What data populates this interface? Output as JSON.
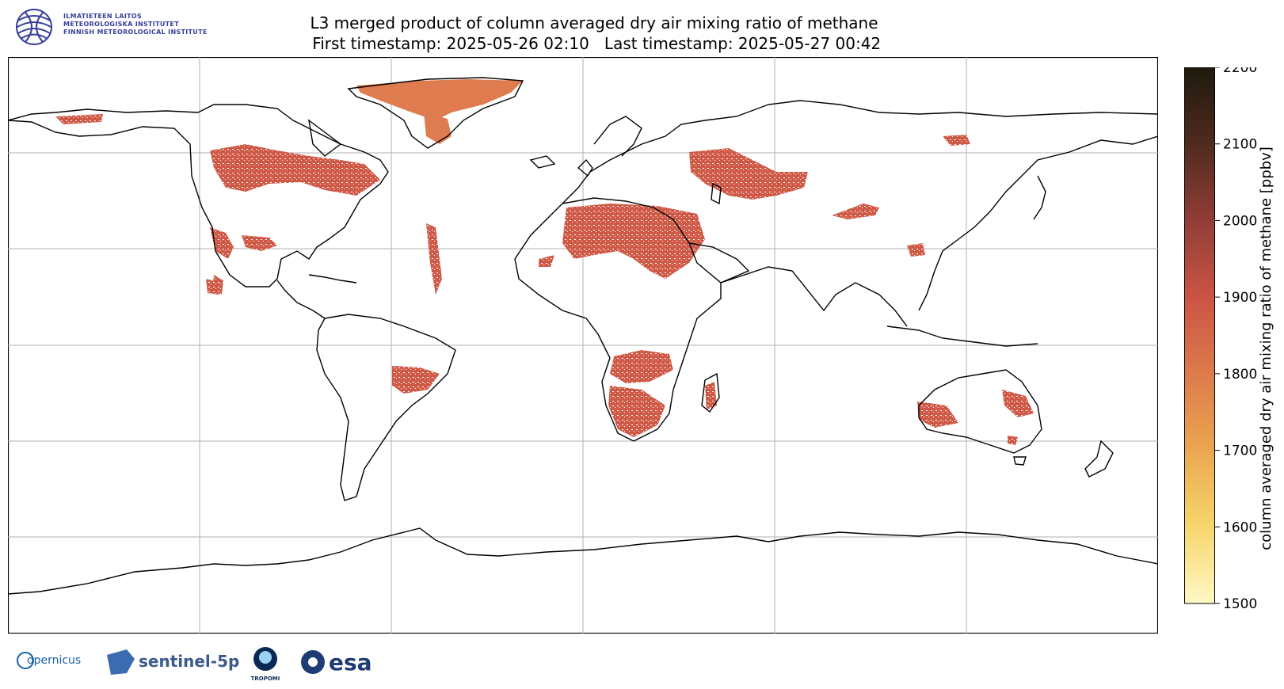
{
  "header": {
    "institute_lines": [
      "ILMATIETEEN LAITOS",
      "METEOROLOGISKA INSTITUTET",
      "FINNISH METEOROLOGICAL INSTITUTE"
    ],
    "title_line1": "L3 merged product of column averaged dry air mixing ratio of methane",
    "title_line2": " First timestamp: 2025-05-26 02:10   Last timestamp: 2025-05-27 00:42"
  },
  "colorbar": {
    "label": "column averaged dry air mixing ratio of methane [ppbv]",
    "min": 1500,
    "max": 2200,
    "ticks": [
      "1500",
      "1600",
      "1700",
      "1800",
      "1900",
      "2000",
      "2100",
      "2200"
    ],
    "colors": [
      "#fff8c5",
      "#f6d469",
      "#eaa24f",
      "#dc7a4c",
      "#cc5444",
      "#8e3d35",
      "#4f2a1e",
      "#1e1a0c"
    ]
  },
  "map": {
    "projection": "equirectangular",
    "grid": true,
    "coastline_color": "#000000",
    "data_color": "#cf5a48",
    "greenland_color": "#de7c4f"
  },
  "footer_logos": [
    "opernicus",
    "sentinel-5p",
    "TROPOMI",
    "esa"
  ]
}
